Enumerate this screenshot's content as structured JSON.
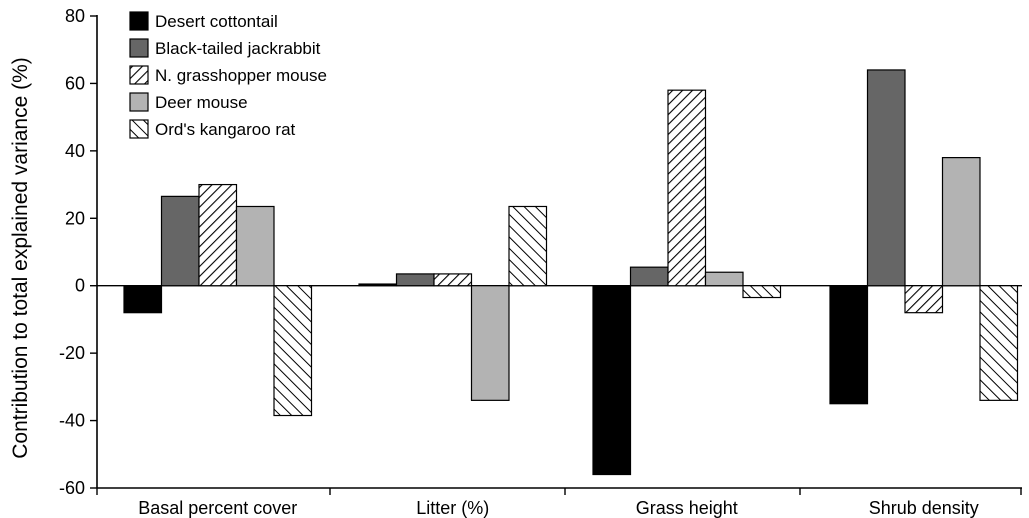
{
  "chart_data": {
    "type": "bar",
    "title": "",
    "xlabel": "",
    "ylabel": "Contribution to total explained variance (%)",
    "ylim": [
      -60,
      80
    ],
    "yticks": [
      -60,
      -40,
      -20,
      0,
      20,
      40,
      60,
      80
    ],
    "ytick_labels": [
      "-60",
      "-40",
      "-20",
      "0",
      "20",
      "40",
      "60",
      "80"
    ],
    "categories": [
      "Basal percent cover",
      "Litter (%)",
      "Grass height",
      "Shrub density"
    ],
    "grid": false,
    "legend_position": "top-left",
    "series": [
      {
        "name": "Desert cottontail",
        "fill": "#000000",
        "pattern": "solid",
        "values": [
          -8,
          0.5,
          -56,
          -35
        ]
      },
      {
        "name": "Black-tailed jackrabbit",
        "fill": "#666666",
        "pattern": "solid",
        "values": [
          26.5,
          3.5,
          5.5,
          64
        ]
      },
      {
        "name": "N. grasshopper mouse",
        "fill": "#ffffff",
        "pattern": "dense-backslash-hatch",
        "values": [
          30,
          3.5,
          58,
          -8
        ]
      },
      {
        "name": "Deer mouse",
        "fill": "#b3b3b3",
        "pattern": "solid",
        "values": [
          23.5,
          -34,
          4,
          38
        ]
      },
      {
        "name": "Ord's kangaroo rat",
        "fill": "#ffffff",
        "pattern": "slash-hatch",
        "values": [
          -38.5,
          23.5,
          -3.5,
          -34
        ]
      }
    ]
  }
}
